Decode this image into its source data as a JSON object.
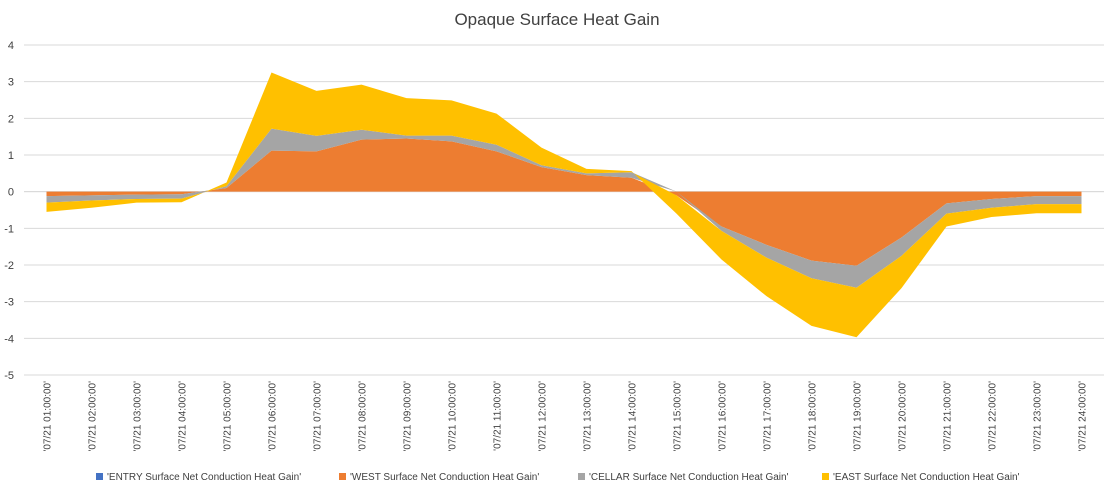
{
  "chart_data": {
    "type": "area",
    "stacked": true,
    "title": "Opaque Surface Heat Gain",
    "xlabel": "",
    "ylabel": "",
    "ylim": [
      -5,
      4
    ],
    "yticks": [
      4,
      3,
      2,
      1,
      0,
      -1,
      -2,
      -3,
      -4,
      -5
    ],
    "grid": true,
    "legend_position": "bottom",
    "categories": [
      " '07/21  01:00:00'",
      " '07/21  02:00:00'",
      " '07/21  03:00:00'",
      " '07/21  04:00:00'",
      " '07/21  05:00:00'",
      " '07/21  06:00:00'",
      " '07/21  07:00:00'",
      " '07/21  08:00:00'",
      " '07/21  09:00:00'",
      " '07/21  10:00:00'",
      " '07/21  11:00:00'",
      " '07/21  12:00:00'",
      " '07/21  13:00:00'",
      " '07/21  14:00:00'",
      " '07/21  15:00:00'",
      " '07/21  16:00:00'",
      " '07/21  17:00:00'",
      " '07/21  18:00:00'",
      " '07/21  19:00:00'",
      " '07/21  20:00:00'",
      " '07/21  21:00:00'",
      " '07/21  22:00:00'",
      " '07/21  23:00:00'",
      " '07/21  24:00:00'"
    ],
    "series": [
      {
        "name": "'ENTRY Surface Net Conduction Heat Gain'",
        "color": "#4472c4",
        "values": [
          0,
          0,
          0,
          0,
          0,
          0,
          0,
          0,
          0,
          0,
          0,
          0,
          0,
          0,
          0,
          0,
          0,
          0,
          0,
          0,
          0,
          0,
          0,
          0
        ]
      },
      {
        "name": "'WEST Surface Net Conduction Heat Gain'",
        "color": "#ed7d31",
        "values": [
          -0.12,
          -0.1,
          -0.08,
          -0.07,
          0.1,
          1.12,
          1.1,
          1.42,
          1.45,
          1.37,
          1.1,
          0.67,
          0.45,
          0.38,
          -0.1,
          -0.95,
          -1.45,
          -1.88,
          -2.02,
          -1.25,
          -0.32,
          -0.2,
          -0.12,
          -0.12
        ]
      },
      {
        "name": "'CELLAR Surface Net Conduction Heat Gain'",
        "color": "#a5a5a5",
        "values": [
          -0.18,
          -0.14,
          -0.12,
          -0.12,
          0.05,
          0.6,
          0.42,
          0.27,
          0.08,
          0.16,
          0.18,
          0.05,
          0.05,
          0.15,
          0,
          -0.12,
          -0.35,
          -0.48,
          -0.6,
          -0.5,
          -0.28,
          -0.24,
          -0.22,
          -0.22
        ]
      },
      {
        "name": "'EAST Surface Net Conduction Heat Gain'",
        "color": "#ffc000",
        "values": [
          -0.25,
          -0.2,
          -0.1,
          -0.1,
          0.1,
          1.53,
          1.23,
          1.23,
          1.02,
          0.96,
          0.85,
          0.48,
          0.12,
          0.03,
          -0.5,
          -0.78,
          -1.05,
          -1.3,
          -1.35,
          -0.88,
          -0.35,
          -0.25,
          -0.25,
          -0.25
        ]
      }
    ]
  }
}
